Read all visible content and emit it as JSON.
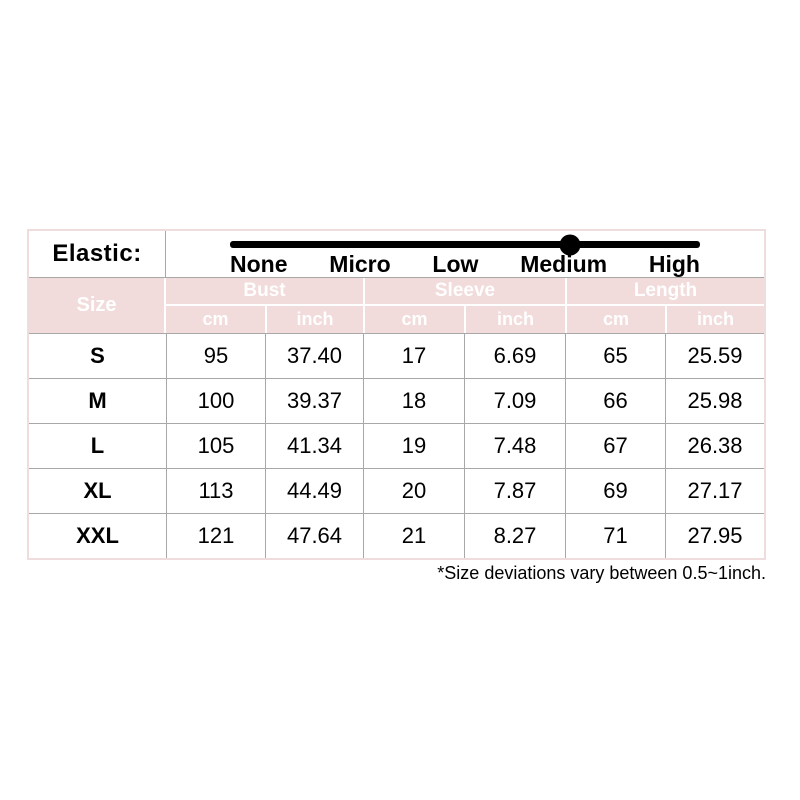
{
  "elastic": {
    "label": "Elastic:",
    "levels": [
      "None",
      "Micro",
      "Low",
      "Medium",
      "High"
    ],
    "selected": "Medium",
    "slider_position_pct": 72.3
  },
  "size_table": {
    "corner_header": "Size",
    "groups": [
      "Bust",
      "Sleeve",
      "Length"
    ],
    "units": [
      "cm",
      "inch",
      "cm",
      "inch",
      "cm",
      "inch"
    ],
    "rows": [
      {
        "size": "S",
        "values": [
          "95",
          "37.40",
          "17",
          "6.69",
          "65",
          "25.59"
        ]
      },
      {
        "size": "M",
        "values": [
          "100",
          "39.37",
          "18",
          "7.09",
          "66",
          "25.98"
        ]
      },
      {
        "size": "L",
        "values": [
          "105",
          "41.34",
          "19",
          "7.48",
          "67",
          "26.38"
        ]
      },
      {
        "size": "XL",
        "values": [
          "113",
          "44.49",
          "20",
          "7.87",
          "69",
          "27.17"
        ]
      },
      {
        "size": "XXL",
        "values": [
          "121",
          "47.64",
          "21",
          "8.27",
          "71",
          "27.95"
        ]
      }
    ]
  },
  "footnote": "*Size deviations vary between 0.5~1inch.",
  "colors": {
    "header_bg": "#f2dbdb",
    "header_text": "#ffffff",
    "grid_line": "#a8a8a8",
    "outer_border": "#efdcdc",
    "slider_color": "#000000",
    "text_color": "#000000"
  },
  "chart_data": {
    "type": "table",
    "title": "Garment size chart",
    "columns": [
      "Size",
      "Bust cm",
      "Bust inch",
      "Sleeve cm",
      "Sleeve inch",
      "Length cm",
      "Length inch"
    ],
    "rows": [
      [
        "S",
        95,
        37.4,
        17,
        6.69,
        65,
        25.59
      ],
      [
        "M",
        100,
        39.37,
        18,
        7.09,
        66,
        25.98
      ],
      [
        "L",
        105,
        41.34,
        19,
        7.48,
        67,
        26.38
      ],
      [
        "XL",
        113,
        44.49,
        20,
        7.87,
        69,
        27.17
      ],
      [
        "XXL",
        121,
        47.64,
        21,
        8.27,
        71,
        27.95
      ]
    ],
    "elastic_scale": {
      "levels": [
        "None",
        "Micro",
        "Low",
        "Medium",
        "High"
      ],
      "selected": "Medium"
    },
    "footnote": "*Size deviations vary between 0.5~1inch."
  }
}
